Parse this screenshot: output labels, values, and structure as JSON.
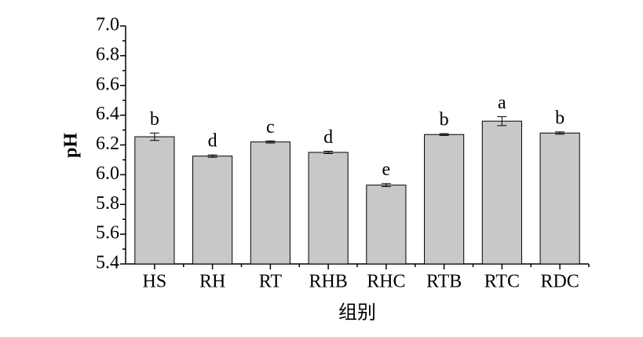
{
  "chart_data": {
    "type": "bar",
    "ylabel": "pH",
    "xlabel": "组别",
    "categories": [
      "HS",
      "RH",
      "RT",
      "RHB",
      "RHC",
      "RTB",
      "RTC",
      "RDC"
    ],
    "values": [
      6.255,
      6.125,
      6.22,
      6.15,
      5.93,
      6.27,
      6.36,
      6.28
    ],
    "errors": [
      0.025,
      0.008,
      0.007,
      0.008,
      0.01,
      0.006,
      0.03,
      0.008
    ],
    "letters": [
      "b",
      "d",
      "c",
      "d",
      "e",
      "b",
      "a",
      "b"
    ],
    "color": "#c8c8c8",
    "ylim": [
      5.4,
      7.0
    ],
    "yticks": [
      5.4,
      5.6,
      5.8,
      {
        "value": 6,
        "label": "6.0"
      },
      6.2,
      6.4,
      6.6,
      6.8,
      {
        "value": 7,
        "label": "7.0"
      }
    ]
  }
}
